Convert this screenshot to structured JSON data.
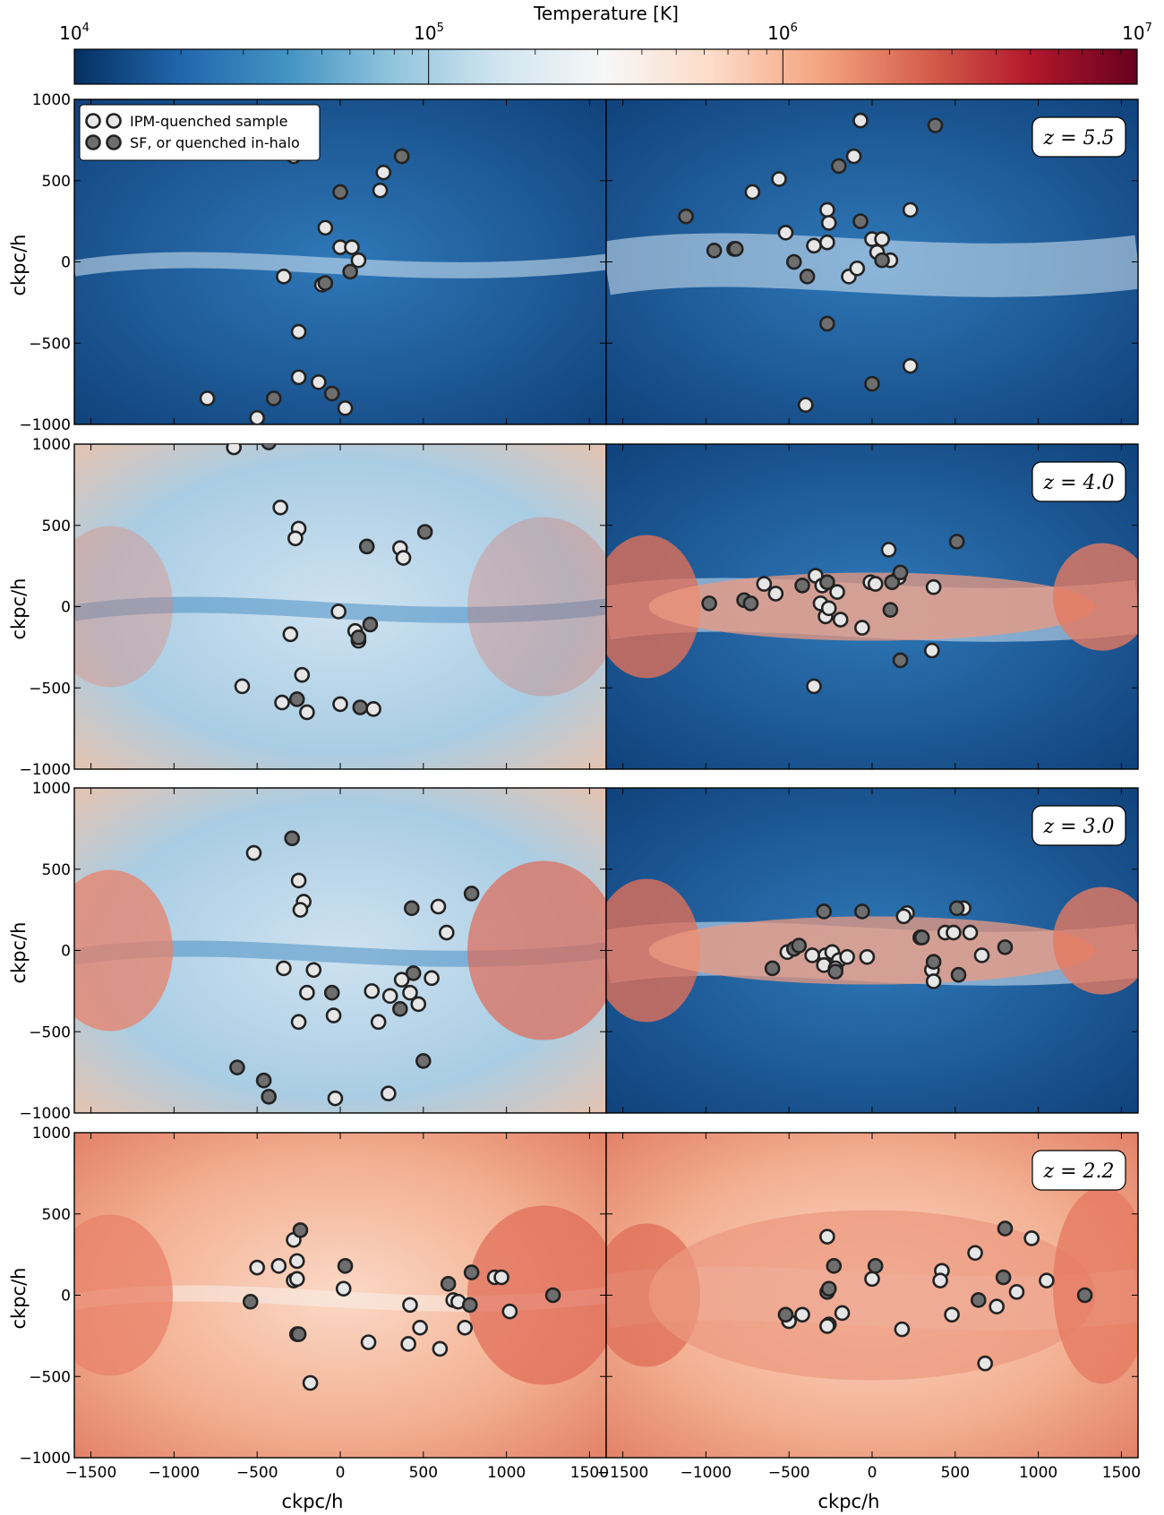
{
  "colorbar": {
    "label": "Temperature [K]",
    "ticks": [
      {
        "base": "10",
        "exp": "4"
      },
      {
        "base": "10",
        "exp": "5"
      },
      {
        "base": "10",
        "exp": "6"
      },
      {
        "base": "10",
        "exp": "7"
      }
    ],
    "log_range": [
      4,
      7
    ],
    "colors": [
      "#053061",
      "#2166ac",
      "#4393c3",
      "#92c5de",
      "#d1e5f0",
      "#f7f7f7",
      "#fddbc7",
      "#f4a582",
      "#d6604d",
      "#b2182b",
      "#67001f"
    ]
  },
  "legend": {
    "items": [
      {
        "label": "IPM-quenched sample",
        "fill": "#e6e6e6"
      },
      {
        "label": "SF, or quenched in-halo",
        "fill": "#6e6e6e"
      }
    ]
  },
  "axes": {
    "xlabel": "ckpc/h",
    "ylabel": "ckpc/h",
    "xlim": [
      -1600,
      1600
    ],
    "ylim": [
      -1000,
      1000
    ],
    "xticks": [
      -1500,
      -1000,
      -500,
      0,
      500,
      1000,
      1500
    ],
    "yticks": [
      -1000,
      -500,
      0,
      500,
      1000
    ]
  },
  "chart_data": [
    {
      "type": "scatter",
      "row": 0,
      "col": 0,
      "redshift_label": "",
      "background": "cold",
      "series": [
        {
          "name": "IPM-quenched sample",
          "points": [
            [
              -280,
              650
            ],
            [
              260,
              550
            ],
            [
              240,
              440
            ],
            [
              -90,
              210
            ],
            [
              0,
              90
            ],
            [
              70,
              90
            ],
            [
              110,
              10
            ],
            [
              -340,
              -90
            ],
            [
              -110,
              -140
            ],
            [
              -250,
              -430
            ],
            [
              -250,
              -710
            ],
            [
              -130,
              -740
            ],
            [
              30,
              -900
            ],
            [
              -800,
              -840
            ],
            [
              -500,
              -960
            ]
          ]
        },
        {
          "name": "SF, or quenched in-halo",
          "points": [
            [
              370,
              650
            ],
            [
              0,
              430
            ],
            [
              -90,
              -130
            ],
            [
              60,
              -60
            ],
            [
              -400,
              -840
            ],
            [
              -50,
              -810
            ]
          ]
        }
      ]
    },
    {
      "type": "scatter",
      "row": 0,
      "col": 1,
      "redshift_label": "z = 5.5",
      "background": "cold",
      "series": [
        {
          "name": "IPM-quenched sample",
          "points": [
            [
              -70,
              870
            ],
            [
              -110,
              650
            ],
            [
              -560,
              510
            ],
            [
              -720,
              430
            ],
            [
              -270,
              320
            ],
            [
              -260,
              240
            ],
            [
              -520,
              180
            ],
            [
              -350,
              100
            ],
            [
              -270,
              120
            ],
            [
              0,
              140
            ],
            [
              60,
              140
            ],
            [
              30,
              60
            ],
            [
              110,
              10
            ],
            [
              -140,
              -90
            ],
            [
              -90,
              -40
            ],
            [
              230,
              320
            ],
            [
              230,
              -640
            ],
            [
              -400,
              -880
            ]
          ]
        },
        {
          "name": "SF, or quenched in-halo",
          "points": [
            [
              380,
              840
            ],
            [
              -200,
              590
            ],
            [
              -1120,
              280
            ],
            [
              -70,
              250
            ],
            [
              -950,
              70
            ],
            [
              -830,
              80
            ],
            [
              -470,
              0
            ],
            [
              -390,
              -90
            ],
            [
              60,
              10
            ],
            [
              -270,
              -380
            ],
            [
              0,
              -750
            ],
            [
              -820,
              80
            ]
          ]
        }
      ]
    },
    {
      "type": "scatter",
      "row": 1,
      "col": 0,
      "redshift_label": "",
      "background": "mixed",
      "series": [
        {
          "name": "IPM-quenched sample",
          "points": [
            [
              -640,
              980
            ],
            [
              -360,
              610
            ],
            [
              -250,
              480
            ],
            [
              -270,
              420
            ],
            [
              360,
              360
            ],
            [
              380,
              300
            ],
            [
              -10,
              -30
            ],
            [
              90,
              -150
            ],
            [
              110,
              -210
            ],
            [
              -300,
              -170
            ],
            [
              -230,
              -420
            ],
            [
              -590,
              -490
            ],
            [
              -350,
              -590
            ],
            [
              -200,
              -650
            ],
            [
              0,
              -600
            ],
            [
              200,
              -630
            ]
          ]
        },
        {
          "name": "SF, or quenched in-halo",
          "points": [
            [
              510,
              460
            ],
            [
              160,
              370
            ],
            [
              180,
              -110
            ],
            [
              110,
              -190
            ],
            [
              -260,
              -570
            ],
            [
              120,
              -620
            ],
            [
              -430,
              1010
            ]
          ]
        }
      ]
    },
    {
      "type": "scatter",
      "row": 1,
      "col": 1,
      "redshift_label": "z = 4.0",
      "background": "cold",
      "series": [
        {
          "name": "IPM-quenched sample",
          "points": [
            [
              100,
              350
            ],
            [
              -650,
              140
            ],
            [
              -580,
              80
            ],
            [
              -340,
              190
            ],
            [
              -300,
              130
            ],
            [
              -310,
              20
            ],
            [
              -280,
              -60
            ],
            [
              -210,
              90
            ],
            [
              -190,
              -80
            ],
            [
              -60,
              -130
            ],
            [
              -10,
              150
            ],
            [
              20,
              140
            ],
            [
              160,
              180
            ],
            [
              370,
              120
            ],
            [
              360,
              -270
            ],
            [
              -350,
              -490
            ],
            [
              -260,
              -10
            ]
          ]
        },
        {
          "name": "SF, or quenched in-halo",
          "points": [
            [
              510,
              400
            ],
            [
              -980,
              20
            ],
            [
              -770,
              40
            ],
            [
              -730,
              20
            ],
            [
              -420,
              130
            ],
            [
              -270,
              150
            ],
            [
              120,
              150
            ],
            [
              170,
              210
            ],
            [
              110,
              -20
            ],
            [
              170,
              -330
            ]
          ]
        }
      ]
    },
    {
      "type": "scatter",
      "row": 2,
      "col": 0,
      "redshift_label": "",
      "background": "mixed",
      "series": [
        {
          "name": "IPM-quenched sample",
          "points": [
            [
              -520,
              600
            ],
            [
              -250,
              430
            ],
            [
              -220,
              300
            ],
            [
              -240,
              250
            ],
            [
              590,
              270
            ],
            [
              640,
              110
            ],
            [
              -340,
              -110
            ],
            [
              -160,
              -120
            ],
            [
              -200,
              -260
            ],
            [
              -250,
              -440
            ],
            [
              -40,
              -400
            ],
            [
              190,
              -250
            ],
            [
              300,
              -280
            ],
            [
              370,
              -180
            ],
            [
              420,
              -260
            ],
            [
              470,
              -330
            ],
            [
              550,
              -170
            ],
            [
              230,
              -440
            ],
            [
              -30,
              -910
            ],
            [
              290,
              -880
            ]
          ]
        },
        {
          "name": "SF, or quenched in-halo",
          "points": [
            [
              -290,
              690
            ],
            [
              430,
              260
            ],
            [
              790,
              350
            ],
            [
              440,
              -140
            ],
            [
              -50,
              -260
            ],
            [
              360,
              -360
            ],
            [
              500,
              -680
            ],
            [
              -620,
              -720
            ],
            [
              -460,
              -800
            ],
            [
              -430,
              -900
            ]
          ]
        }
      ]
    },
    {
      "type": "scatter",
      "row": 2,
      "col": 1,
      "redshift_label": "z = 3.0",
      "background": "cold",
      "series": [
        {
          "name": "IPM-quenched sample",
          "points": [
            [
              210,
              230
            ],
            [
              190,
              210
            ],
            [
              550,
              260
            ],
            [
              440,
              110
            ],
            [
              490,
              110
            ],
            [
              590,
              110
            ],
            [
              -510,
              -10
            ],
            [
              -360,
              -30
            ],
            [
              -280,
              -30
            ],
            [
              -240,
              -10
            ],
            [
              -200,
              -60
            ],
            [
              -150,
              -40
            ],
            [
              -290,
              -90
            ],
            [
              -220,
              -110
            ],
            [
              -30,
              -40
            ],
            [
              360,
              -120
            ],
            [
              370,
              -190
            ],
            [
              660,
              -30
            ]
          ]
        },
        {
          "name": "SF, or quenched in-halo",
          "points": [
            [
              -290,
              240
            ],
            [
              -60,
              240
            ],
            [
              510,
              260
            ],
            [
              290,
              80
            ],
            [
              300,
              80
            ],
            [
              -470,
              10
            ],
            [
              -440,
              30
            ],
            [
              -220,
              -130
            ],
            [
              -600,
              -110
            ],
            [
              370,
              -70
            ],
            [
              520,
              -150
            ],
            [
              800,
              20
            ]
          ]
        }
      ]
    },
    {
      "type": "scatter",
      "row": 3,
      "col": 0,
      "redshift_label": "",
      "background": "warm",
      "series": [
        {
          "name": "IPM-quenched sample",
          "points": [
            [
              -500,
              170
            ],
            [
              -370,
              180
            ],
            [
              -280,
              340
            ],
            [
              -260,
              210
            ],
            [
              -280,
              90
            ],
            [
              -260,
              100
            ],
            [
              20,
              40
            ],
            [
              930,
              110
            ],
            [
              970,
              110
            ],
            [
              1020,
              -100
            ],
            [
              680,
              -30
            ],
            [
              710,
              -40
            ],
            [
              420,
              -60
            ],
            [
              480,
              -200
            ],
            [
              600,
              -330
            ],
            [
              750,
              -200
            ],
            [
              410,
              -300
            ],
            [
              170,
              -290
            ],
            [
              -180,
              -540
            ]
          ]
        },
        {
          "name": "SF, or quenched in-halo",
          "points": [
            [
              -240,
              400
            ],
            [
              30,
              180
            ],
            [
              -540,
              -40
            ],
            [
              790,
              140
            ],
            [
              650,
              70
            ],
            [
              780,
              -60
            ],
            [
              1280,
              0
            ],
            [
              -260,
              -240
            ],
            [
              -250,
              -240
            ]
          ]
        }
      ]
    },
    {
      "type": "scatter",
      "row": 3,
      "col": 1,
      "redshift_label": "z = 2.2",
      "background": "warm",
      "series": [
        {
          "name": "IPM-quenched sample",
          "points": [
            [
              -270,
              360
            ],
            [
              620,
              260
            ],
            [
              420,
              150
            ],
            [
              410,
              90
            ],
            [
              960,
              350
            ],
            [
              870,
              20
            ],
            [
              1050,
              90
            ],
            [
              0,
              100
            ],
            [
              -500,
              -160
            ],
            [
              -420,
              -120
            ],
            [
              -260,
              -180
            ],
            [
              -180,
              -110
            ],
            [
              480,
              -120
            ],
            [
              750,
              -70
            ],
            [
              180,
              -210
            ],
            [
              680,
              -420
            ],
            [
              -270,
              -190
            ]
          ]
        },
        {
          "name": "SF, or quenched in-halo",
          "points": [
            [
              800,
              410
            ],
            [
              -230,
              180
            ],
            [
              20,
              180
            ],
            [
              -270,
              20
            ],
            [
              -260,
              40
            ],
            [
              790,
              110
            ],
            [
              640,
              -30
            ],
            [
              -520,
              -120
            ],
            [
              1280,
              0
            ]
          ]
        }
      ]
    }
  ]
}
